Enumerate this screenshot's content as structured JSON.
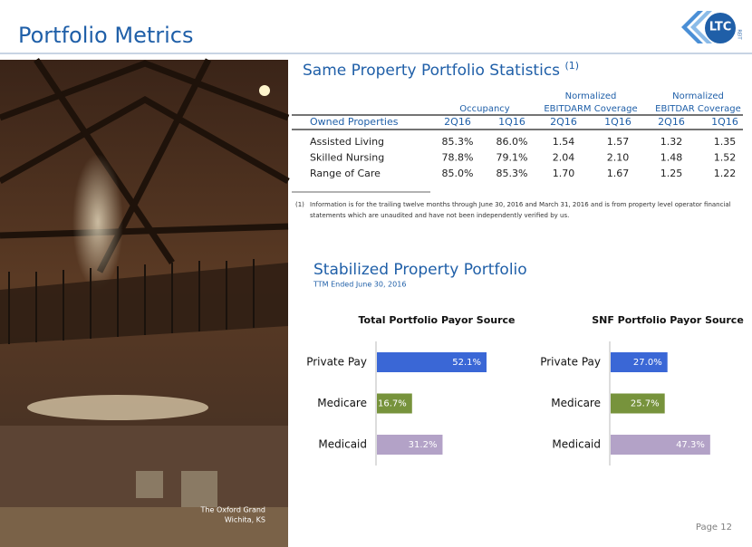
{
  "header": {
    "title": "Portfolio Metrics",
    "logo": {
      "name": "LTC",
      "tag": "REIT"
    }
  },
  "photo": {
    "caption": [
      "The Oxford Grand",
      "Wichita, KS"
    ]
  },
  "table": {
    "title": "Same Property Portfolio Statistics",
    "note_mark": "(1)",
    "groups": [
      [
        "Occupancy"
      ],
      [
        "Normalized",
        "EBITDARM Coverage"
      ],
      [
        "Normalized",
        "EBITDAR Coverage"
      ]
    ],
    "columns": [
      "Owned Properties",
      "2Q16",
      "1Q16",
      "2Q16",
      "1Q16",
      "2Q16",
      "1Q16"
    ],
    "rows": [
      [
        "Assisted Living",
        "85.3%",
        "86.0%",
        "1.54",
        "1.57",
        "1.32",
        "1.35"
      ],
      [
        "Skilled Nursing",
        "78.8%",
        "79.1%",
        "2.04",
        "2.10",
        "1.48",
        "1.52"
      ],
      [
        "Range of Care",
        "85.0%",
        "85.3%",
        "1.70",
        "1.67",
        "1.25",
        "1.22"
      ]
    ]
  },
  "footnote": {
    "mark": "(1)",
    "lines": [
      "Information is for the trailing twelve months through June 30, 2016 and March 31, 2016 and is from property level operator financial",
      "statements which are unaudited and have not been independently verified by us."
    ]
  },
  "section": {
    "title": "Stabilized Property Portfolio",
    "subtitle": "TTM Ended June 30, 2016"
  },
  "chart_data": [
    {
      "type": "bar",
      "orientation": "horizontal",
      "title": "Total Portfolio Payor Source",
      "categories": [
        "Private Pay",
        "Medicare",
        "Medicaid"
      ],
      "values": [
        52.1,
        16.7,
        31.2
      ],
      "value_labels": [
        "52.1%",
        "16.7%",
        "31.2%"
      ],
      "colors": [
        "#3a67d6",
        "#77933c",
        "#b3a2c7"
      ]
    },
    {
      "type": "bar",
      "orientation": "horizontal",
      "title": "SNF Portfolio Payor Source",
      "categories": [
        "Private Pay",
        "Medicare",
        "Medicaid"
      ],
      "values": [
        27.0,
        25.7,
        47.3
      ],
      "value_labels": [
        "27.0%",
        "25.7%",
        "47.3%"
      ],
      "colors": [
        "#3a67d6",
        "#77933c",
        "#b3a2c7"
      ]
    }
  ],
  "page": "Page 12"
}
